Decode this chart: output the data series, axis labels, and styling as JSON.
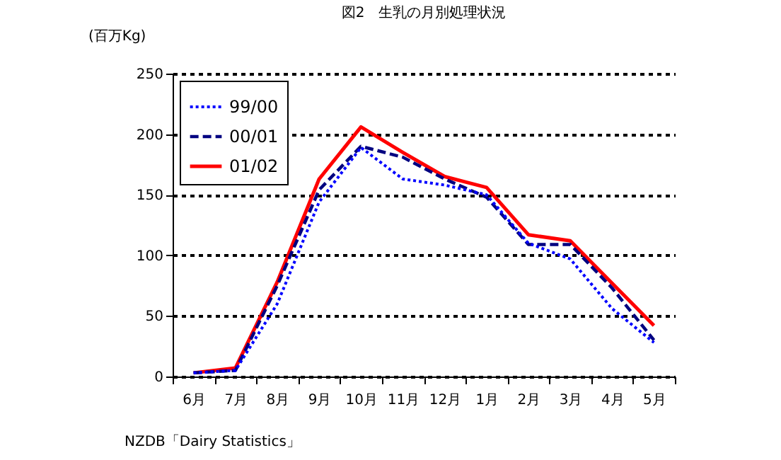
{
  "chart_data": {
    "type": "line",
    "title": "図2　生乳の月別処理状況",
    "ylabel": "(百万Kg)",
    "categories": [
      "6月",
      "7月",
      "8月",
      "9月",
      "10月",
      "11月",
      "12月",
      "1月",
      "2月",
      "3月",
      "4月",
      "5月"
    ],
    "series": [
      {
        "name": "99/00",
        "color": "#0000ff",
        "line_style": "dotted",
        "values": [
          3,
          5,
          60,
          144,
          189,
          163,
          158,
          150,
          110,
          97,
          56,
          28
        ]
      },
      {
        "name": "00/01",
        "color": "#000080",
        "line_style": "dashed",
        "values": [
          3,
          5,
          75,
          154,
          190,
          181,
          163,
          148,
          109,
          109,
          73,
          30
        ]
      },
      {
        "name": "01/02",
        "color": "#ff0000",
        "line_style": "solid",
        "values": [
          3,
          7,
          78,
          163,
          206,
          185,
          165,
          156,
          117,
          112,
          77,
          42
        ]
      }
    ],
    "ylim": [
      0,
      250
    ],
    "yticks": [
      0,
      50,
      100,
      150,
      200,
      250
    ],
    "grid": "y",
    "legend": "top left",
    "marker": "none",
    "annotations": [
      "NZDB「Dairy Statistics」"
    ]
  }
}
